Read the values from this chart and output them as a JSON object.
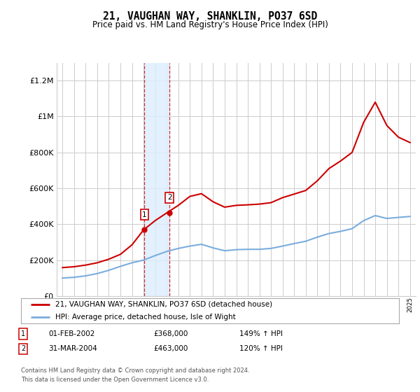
{
  "title": "21, VAUGHAN WAY, SHANKLIN, PO37 6SD",
  "subtitle": "Price paid vs. HM Land Registry's House Price Index (HPI)",
  "legend_line1": "21, VAUGHAN WAY, SHANKLIN, PO37 6SD (detached house)",
  "legend_line2": "HPI: Average price, detached house, Isle of Wight",
  "footnote1": "Contains HM Land Registry data © Crown copyright and database right 2024.",
  "footnote2": "This data is licensed under the Open Government Licence v3.0.",
  "transaction1_date": "01-FEB-2002",
  "transaction1_price": "£368,000",
  "transaction1_hpi": "149% ↑ HPI",
  "transaction2_date": "31-MAR-2004",
  "transaction2_price": "£463,000",
  "transaction2_hpi": "120% ↑ HPI",
  "red_line_color": "#cc0000",
  "blue_line_color": "#7aaddd",
  "shade_color": "#ddeeff",
  "background_color": "#ffffff",
  "grid_color": "#cccccc",
  "ylim": [
    0,
    1300000
  ],
  "yticks": [
    0,
    200000,
    400000,
    600000,
    800000,
    1000000,
    1200000
  ],
  "hpi_years": [
    1995,
    1996,
    1997,
    1998,
    1999,
    2000,
    2001,
    2002,
    2003,
    2004,
    2005,
    2006,
    2007,
    2008,
    2009,
    2010,
    2011,
    2012,
    2013,
    2014,
    2015,
    2016,
    2017,
    2018,
    2019,
    2020,
    2021,
    2022,
    2023,
    2024,
    2025
  ],
  "hpi_values": [
    100000,
    104000,
    112000,
    125000,
    143000,
    165000,
    185000,
    200000,
    225000,
    248000,
    265000,
    278000,
    288000,
    268000,
    252000,
    258000,
    260000,
    260000,
    265000,
    278000,
    292000,
    305000,
    328000,
    348000,
    360000,
    375000,
    420000,
    448000,
    432000,
    438000,
    443000
  ],
  "red_years": [
    1995,
    1996,
    1997,
    1998,
    1999,
    2000,
    2001,
    2002,
    2003,
    2004,
    2005,
    2006,
    2007,
    2008,
    2009,
    2010,
    2011,
    2012,
    2013,
    2014,
    2015,
    2016,
    2017,
    2018,
    2019,
    2020,
    2021,
    2022,
    2023,
    2024,
    2025
  ],
  "red_values": [
    158000,
    163000,
    172000,
    185000,
    205000,
    232000,
    285000,
    368000,
    420000,
    463000,
    505000,
    555000,
    570000,
    525000,
    495000,
    505000,
    508000,
    512000,
    520000,
    548000,
    568000,
    588000,
    642000,
    710000,
    752000,
    800000,
    968000,
    1080000,
    950000,
    885000,
    855000
  ],
  "transaction1_x": 2002.08,
  "transaction1_y": 368000,
  "transaction2_x": 2004.25,
  "transaction2_y": 463000,
  "shade_x1": 2002.08,
  "shade_x2": 2004.25,
  "xlim_left": 1994.5,
  "xlim_right": 2025.5
}
